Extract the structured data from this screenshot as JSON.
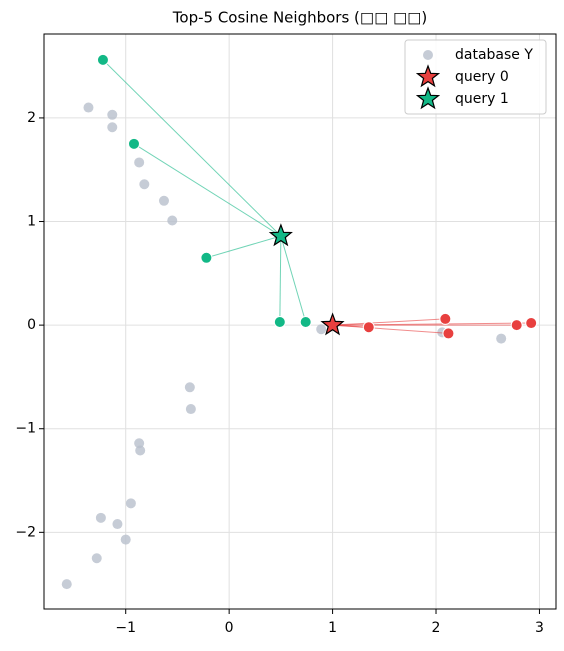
{
  "chart_data": {
    "type": "scatter",
    "title": "Top-5 Cosine Neighbors (□□ □□)",
    "xlim": [
      -1.79,
      3.16
    ],
    "ylim": [
      -2.74,
      2.81
    ],
    "xticks": [
      {
        "value": -1,
        "label": "−1"
      },
      0,
      1,
      2,
      3
    ],
    "yticks": [
      {
        "value": -2,
        "label": "−2"
      },
      {
        "value": -1,
        "label": "−1"
      },
      0,
      1,
      2
    ],
    "grid": true,
    "legend": "upper right",
    "series": [
      {
        "name": "database Y",
        "color": "#b8bfcc",
        "marker": "circle",
        "x": [
          -1.36,
          -1.13,
          -1.13,
          -0.87,
          -0.82,
          -0.63,
          -0.55,
          0.89,
          2.06,
          2.63,
          -0.38,
          -0.37,
          -0.87,
          -0.86,
          -0.95,
          -1.24,
          -1.08,
          -1.0,
          -1.28,
          -1.57
        ],
        "y": [
          2.1,
          2.03,
          1.91,
          1.57,
          1.36,
          1.2,
          1.01,
          -0.04,
          -0.07,
          -0.13,
          -0.6,
          -0.81,
          -1.14,
          -1.21,
          -1.72,
          -1.86,
          -1.92,
          -2.07,
          -2.25,
          -2.5
        ]
      },
      {
        "name": "query 0",
        "color": "#e8403f",
        "marker": "star",
        "x": [
          1.0
        ],
        "y": [
          0.0
        ],
        "neighbors": {
          "x": [
            1.35,
            2.09,
            2.12,
            2.78,
            2.92
          ],
          "y": [
            -0.02,
            0.06,
            -0.08,
            0.0,
            0.02
          ]
        }
      },
      {
        "name": "query 1",
        "color": "#12b886",
        "marker": "star",
        "x": [
          0.5
        ],
        "y": [
          0.86
        ],
        "neighbors": {
          "x": [
            -1.22,
            -0.92,
            -0.22,
            0.49,
            0.74
          ],
          "y": [
            2.56,
            1.75,
            0.65,
            0.03,
            0.03
          ]
        }
      }
    ]
  }
}
